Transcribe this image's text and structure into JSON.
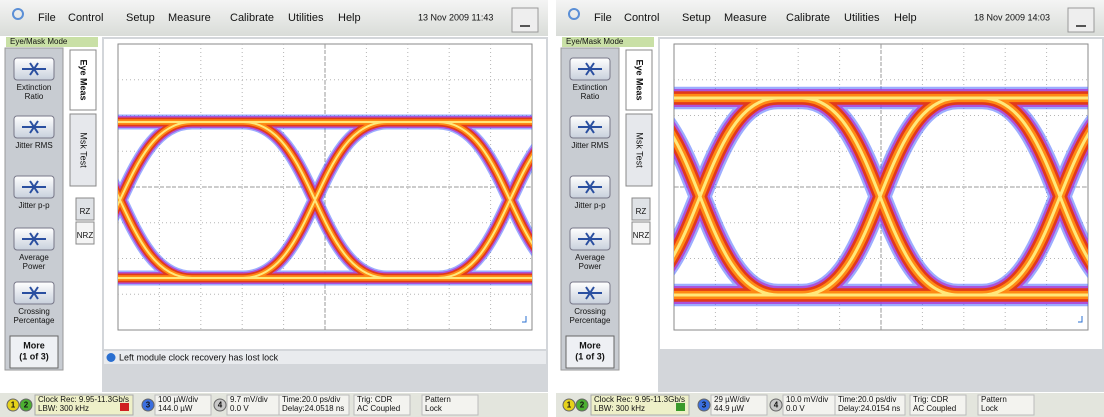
{
  "panels": [
    {
      "menu": [
        "File",
        "Control",
        "Setup",
        "Measure",
        "Calibrate",
        "Utilities",
        "Help"
      ],
      "datetime": "13 Nov 2009 11:43",
      "mode": "Eye/Mask Mode",
      "buttons": [
        [
          "Extinction",
          "Ratio"
        ],
        [
          "Jitter RMS"
        ],
        [
          "Jitter p-p"
        ],
        [
          "Average",
          "Power"
        ],
        [
          "Crossing",
          "Percentage"
        ]
      ],
      "more": [
        "More",
        "(1 of 3)"
      ],
      "tabs": [
        "Eye Meas",
        "Msk Test"
      ],
      "formats": [
        "RZ",
        "NRZ"
      ],
      "message": "Left module clock recovery has lost lock",
      "channels": [
        "1",
        "2",
        "3",
        "4"
      ],
      "clock": [
        "Clock Rec: 9.95-11.3Gb/s",
        "LBW: 300 kHz"
      ],
      "ch3": [
        "100 µW/div",
        "144.0 µW"
      ],
      "ch4": [
        "9.7 mV/div",
        "0.0 V"
      ],
      "time": [
        "Time:20.0 ps/div",
        "Delay:24.0518 ns"
      ],
      "trig": [
        "Trig: CDR",
        "AC Coupled"
      ],
      "pattern": [
        "Pattern",
        "Lock"
      ]
    },
    {
      "menu": [
        "File",
        "Control",
        "Setup",
        "Measure",
        "Calibrate",
        "Utilities",
        "Help"
      ],
      "datetime": "18 Nov 2009 14:03",
      "mode": "Eye/Mask Mode",
      "buttons": [
        [
          "Extinction",
          "Ratio"
        ],
        [
          "Jitter RMS"
        ],
        [
          "Jitter p-p"
        ],
        [
          "Average",
          "Power"
        ],
        [
          "Crossing",
          "Percentage"
        ]
      ],
      "more": [
        "More",
        "(1 of 3)"
      ],
      "tabs": [
        "Eye Meas",
        "Msk Test"
      ],
      "formats": [
        "RZ",
        "NRZ"
      ],
      "channels": [
        "1",
        "2",
        "3",
        "4"
      ],
      "clock": [
        "Clock Rec: 9.95-11.3Gb/s",
        "LBW: 300 kHz"
      ],
      "ch3": [
        "29 µW/div",
        "44.9 µW"
      ],
      "ch4": [
        "10.0 mV/div",
        "0.0 V"
      ],
      "time": [
        "Time:20.0 ps/div",
        "Delay:24.0154 ns"
      ],
      "trig": [
        "Trig: CDR",
        "AC Coupled"
      ],
      "pattern": [
        "Pattern",
        "Lock"
      ]
    }
  ]
}
